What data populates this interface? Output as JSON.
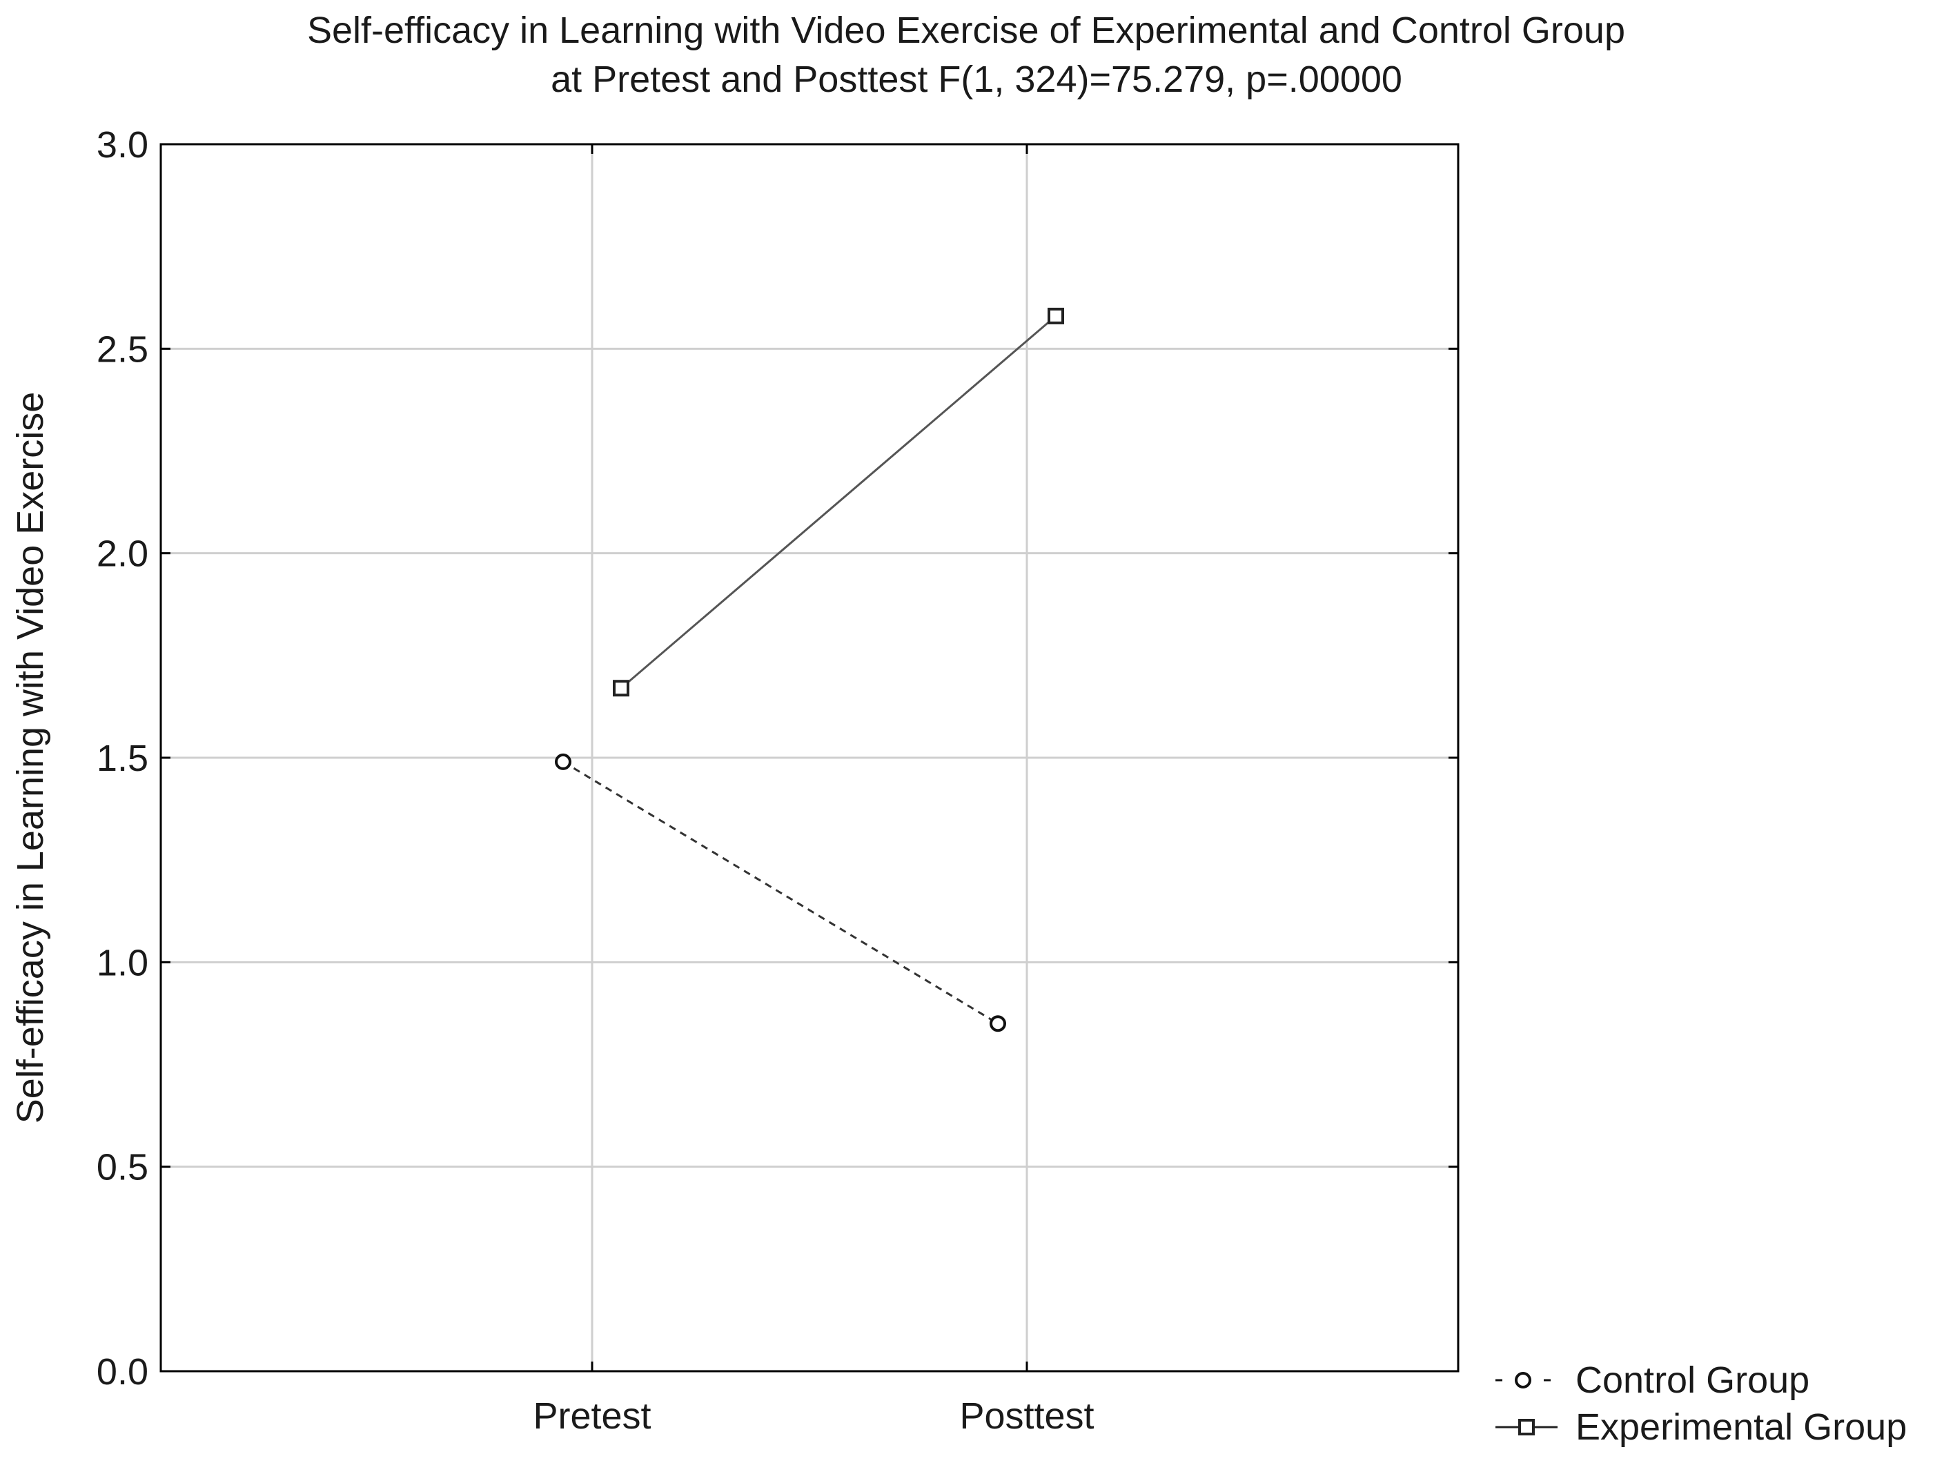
{
  "chart_data": {
    "type": "line",
    "title": "Self-efficacy in Learning with Video Exercise of Experimental and Control Group",
    "subtitle": "at Pretest and Posttest F(1, 324)=75.279, p=.00000",
    "xlabel": "",
    "ylabel": "Self-efficacy in Learning with Video Exercise",
    "categories": [
      "Pretest",
      "Posttest"
    ],
    "ylim": [
      0.0,
      3.0
    ],
    "yticks": [
      "0.0",
      "0.5",
      "1.0",
      "1.5",
      "2.0",
      "2.5",
      "3.0"
    ],
    "grid": true,
    "legend_position": "bottom-right outside",
    "series": [
      {
        "name": "Control Group",
        "values": [
          1.49,
          0.85
        ],
        "marker": "circle",
        "line_style": "dashed",
        "color": "#333333",
        "legend_symbol": "- o -"
      },
      {
        "name": "Experimental Group",
        "values": [
          1.67,
          2.58
        ],
        "marker": "square",
        "line_style": "solid",
        "color": "#555555",
        "legend_symbol": "—□—"
      }
    ]
  }
}
